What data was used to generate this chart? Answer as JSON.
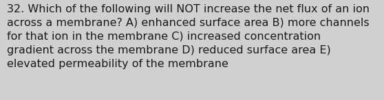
{
  "lines": [
    "32. Which of the following will NOT increase the net flux of an ion",
    "across a membrane? A) enhanced surface area B) more channels",
    "for that ion in the membrane C) increased concentration",
    "gradient across the membrane D) reduced surface area E)",
    "elevated permeability of the membrane"
  ],
  "background_color": "#d0d0d0",
  "text_color": "#1a1a1a",
  "font_size": 11.5,
  "fig_width": 5.58,
  "fig_height": 1.46,
  "dpi": 100
}
